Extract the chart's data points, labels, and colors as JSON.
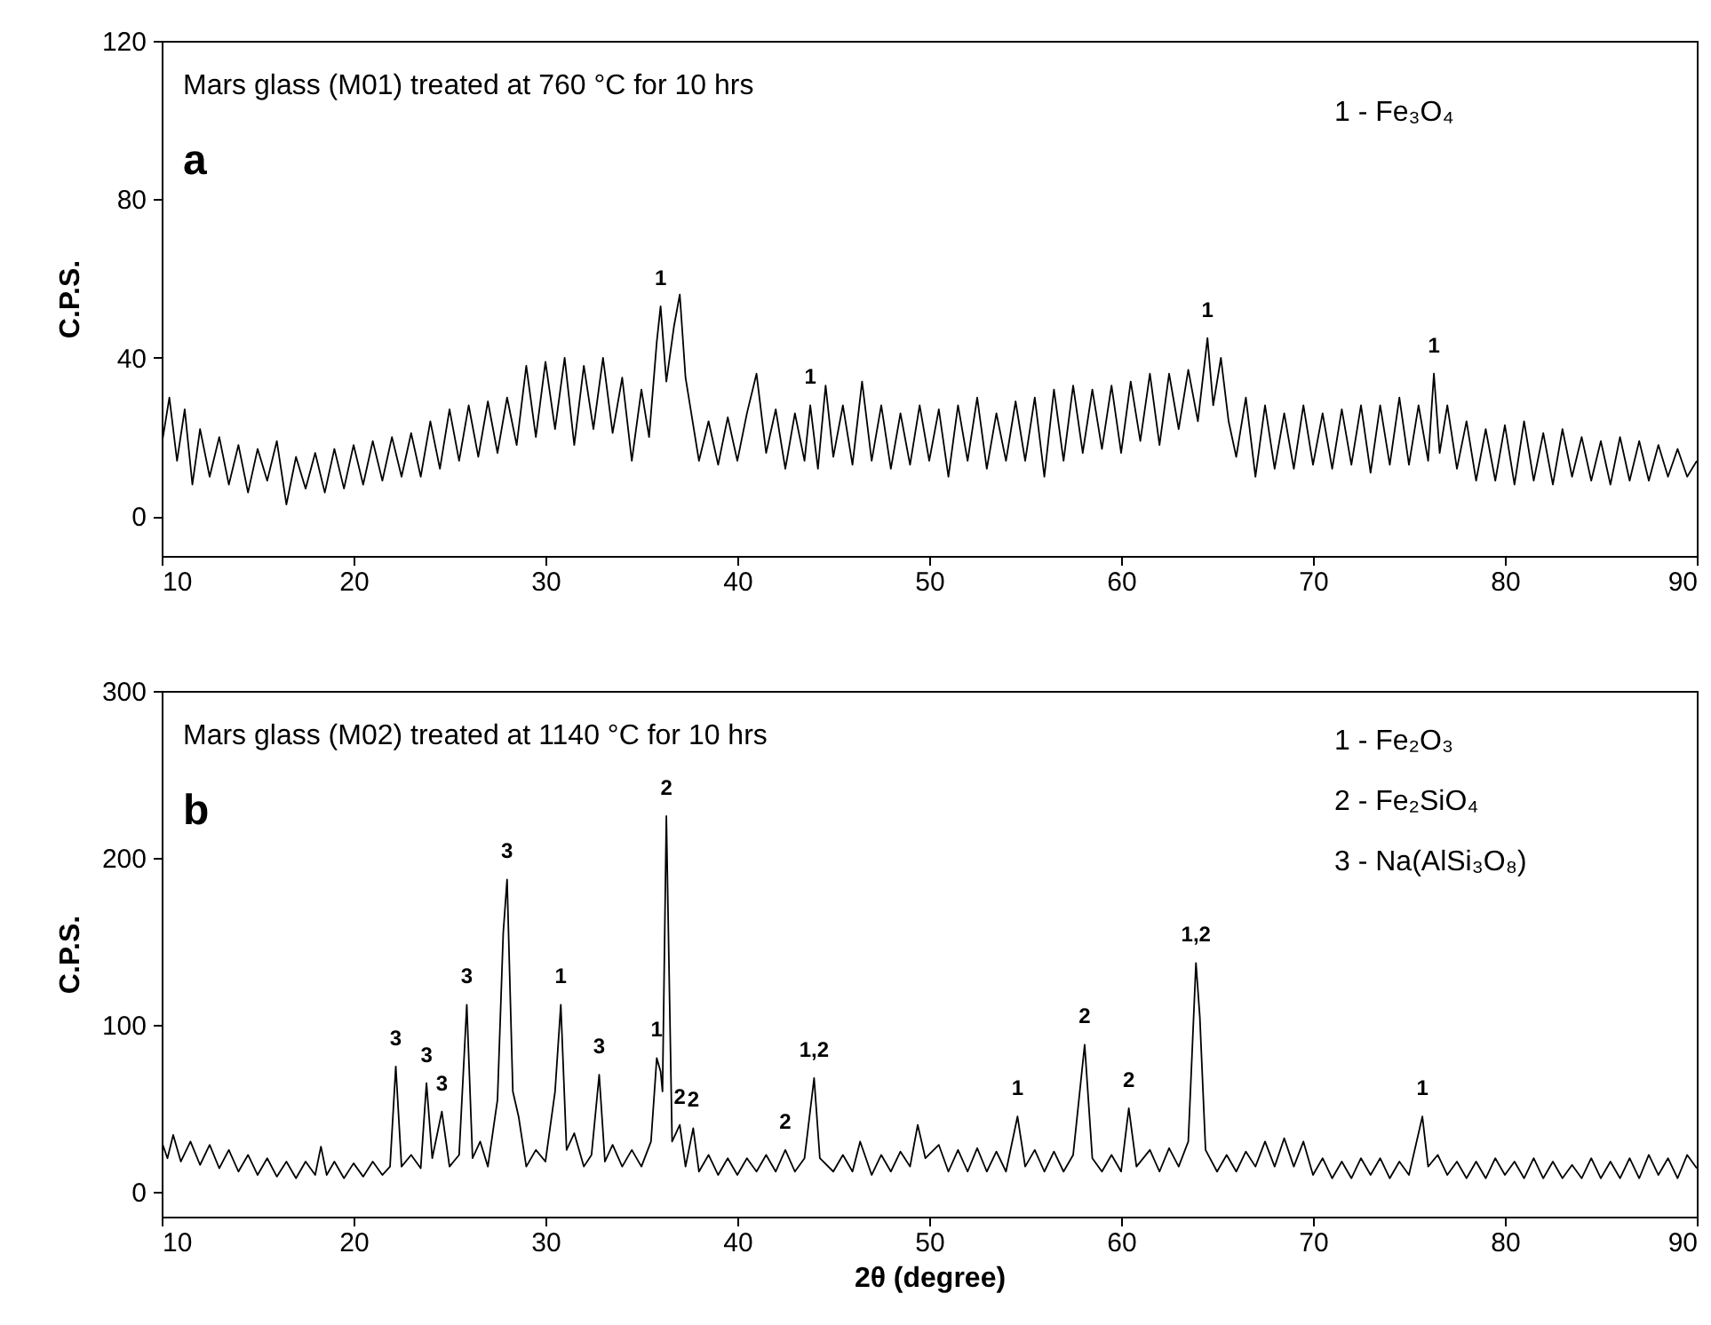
{
  "chart_data": [
    {
      "type": "line",
      "ylabel": "C.P.S.",
      "xlim": [
        10,
        90
      ],
      "xticks": [
        10,
        20,
        30,
        40,
        50,
        60,
        70,
        80,
        90
      ],
      "ylim": [
        -10,
        120
      ],
      "yticks": [
        0,
        40,
        80,
        120
      ],
      "x": [
        10,
        10.4,
        10.8,
        11.2,
        11.6,
        12,
        12.5,
        13,
        13.5,
        14,
        14.5,
        15,
        15.5,
        16,
        16.5,
        17,
        17.5,
        18,
        18.5,
        19,
        19.5,
        20,
        20.5,
        21,
        21.5,
        22,
        22.5,
        23,
        23.5,
        24,
        24.5,
        25,
        25.5,
        26,
        26.5,
        27,
        27.5,
        28,
        28.5,
        29,
        29.5,
        30,
        30.5,
        31,
        31.5,
        32,
        32.5,
        33,
        33.5,
        34,
        34.5,
        35,
        35.4,
        35.8,
        36.0,
        36.3,
        36.7,
        37.0,
        37.3,
        37.6,
        38,
        38.5,
        39,
        39.5,
        40,
        40.5,
        41,
        41.5,
        42,
        42.5,
        43,
        43.5,
        43.8,
        44.2,
        44.6,
        45,
        45.5,
        46,
        46.5,
        47,
        47.5,
        48,
        48.5,
        49,
        49.5,
        50,
        50.5,
        51,
        51.5,
        52,
        52.5,
        53,
        53.5,
        54,
        54.5,
        55,
        55.5,
        56,
        56.5,
        57,
        57.5,
        58,
        58.5,
        59,
        59.5,
        60,
        60.5,
        61,
        61.5,
        62,
        62.5,
        63,
        63.5,
        64,
        64.5,
        64.8,
        65.2,
        65.6,
        66,
        66.5,
        67,
        67.5,
        68,
        68.5,
        69,
        69.5,
        70,
        70.5,
        71,
        71.5,
        72,
        72.5,
        73,
        73.5,
        74,
        74.5,
        75,
        75.5,
        76.0,
        76.3,
        76.6,
        77,
        77.5,
        78,
        78.5,
        79,
        79.5,
        80,
        80.5,
        81,
        81.5,
        82,
        82.5,
        83,
        83.5,
        84,
        84.5,
        85,
        85.5,
        86,
        86.5,
        87,
        87.5,
        88,
        88.5,
        89,
        89.5,
        90
      ],
      "series": [
        {
          "color": "#000000",
          "values": [
            18,
            30,
            14,
            27,
            8,
            22,
            10,
            20,
            8,
            18,
            6,
            17,
            9,
            19,
            3,
            15,
            7,
            16,
            6,
            17,
            7,
            18,
            8,
            19,
            9,
            20,
            10,
            21,
            10,
            24,
            12,
            27,
            14,
            28,
            15,
            29,
            16,
            30,
            18,
            38,
            20,
            39,
            22,
            40,
            18,
            38,
            22,
            40,
            21,
            35,
            14,
            32,
            20,
            44,
            53,
            34,
            48,
            56,
            35,
            26,
            14,
            24,
            13,
            25,
            14,
            26,
            36,
            16,
            27,
            12,
            26,
            14,
            28,
            12,
            33,
            15,
            28,
            13,
            34,
            14,
            28,
            12,
            26,
            13,
            28,
            14,
            27,
            10,
            28,
            14,
            30,
            12,
            26,
            14,
            29,
            14,
            30,
            10,
            32,
            14,
            33,
            16,
            32,
            17,
            33,
            16,
            34,
            19,
            36,
            18,
            36,
            22,
            37,
            24,
            45,
            28,
            40,
            24,
            15,
            30,
            10,
            28,
            12,
            26,
            12,
            28,
            13,
            26,
            12,
            27,
            13,
            28,
            11,
            28,
            13,
            30,
            13,
            28,
            14,
            36,
            16,
            28,
            12,
            24,
            9,
            22,
            9,
            23,
            8,
            24,
            9,
            21,
            8,
            22,
            10,
            20,
            9,
            19,
            8,
            20,
            9,
            19,
            9,
            18,
            10,
            17,
            10,
            14
          ]
        }
      ],
      "annotations": [
        "Mars glass (M01) treated at 760 °C for 10 hrs",
        "a",
        "1 - Fe₃O₄",
        {
          "text": "1",
          "x": 36.0,
          "y": 53
        },
        {
          "text": "1",
          "x": 43.8,
          "y": 28
        },
        {
          "text": "1",
          "x": 64.5,
          "y": 45
        },
        {
          "text": "1",
          "x": 76.3,
          "y": 36
        }
      ]
    },
    {
      "type": "line",
      "xlabel": "2θ (degree)",
      "ylabel": "C.P.S.",
      "xlim": [
        10,
        90
      ],
      "xticks": [
        10,
        20,
        30,
        40,
        50,
        60,
        70,
        80,
        90
      ],
      "ylim": [
        -15,
        300
      ],
      "yticks": [
        0,
        100,
        200,
        300
      ],
      "x": [
        10,
        10.3,
        10.6,
        11,
        11.5,
        12,
        12.5,
        13,
        13.5,
        14,
        14.5,
        15,
        15.5,
        16,
        16.5,
        17,
        17.5,
        18,
        18.3,
        18.6,
        19,
        19.5,
        20,
        20.5,
        21,
        21.5,
        21.9,
        22.2,
        22.5,
        23,
        23.5,
        23.8,
        24.1,
        24.6,
        25,
        25.5,
        25.9,
        26.2,
        26.6,
        27,
        27.5,
        27.8,
        28.0,
        28.3,
        28.6,
        29,
        29.5,
        30,
        30.5,
        30.8,
        31.1,
        31.5,
        32,
        32.4,
        32.8,
        33.1,
        33.5,
        34,
        34.5,
        35,
        35.5,
        35.8,
        36.0,
        36.1,
        36.3,
        36.6,
        37.0,
        37.3,
        37.7,
        38,
        38.5,
        39,
        39.5,
        40,
        40.5,
        41,
        41.5,
        42,
        42.5,
        43,
        43.5,
        44.0,
        44.3,
        45,
        45.5,
        46,
        46.4,
        47,
        47.5,
        48,
        48.5,
        49,
        49.4,
        49.8,
        50.5,
        51,
        51.5,
        52,
        52.5,
        53,
        53.5,
        54,
        54.6,
        55,
        55.5,
        56,
        56.5,
        57,
        57.5,
        58.1,
        58.5,
        59,
        59.5,
        60,
        60.4,
        60.8,
        61.5,
        62,
        62.5,
        63,
        63.5,
        63.9,
        64.1,
        64.4,
        65,
        65.5,
        66,
        66.5,
        67,
        67.5,
        68,
        68.5,
        69,
        69.5,
        70,
        70.5,
        71,
        71.5,
        72,
        72.5,
        73,
        73.5,
        74,
        74.5,
        75,
        75.7,
        76,
        76.5,
        77,
        77.5,
        78,
        78.5,
        79,
        79.5,
        80,
        80.5,
        81,
        81.5,
        82,
        82.5,
        83,
        83.5,
        84,
        84.5,
        85,
        85.5,
        86,
        86.5,
        87,
        87.5,
        88,
        88.5,
        89,
        89.5,
        90
      ],
      "series": [
        {
          "color": "#000000",
          "values": [
            30,
            20,
            34,
            18,
            30,
            16,
            28,
            14,
            25,
            12,
            22,
            10,
            20,
            9,
            18,
            8,
            18,
            10,
            27,
            10,
            18,
            8,
            17,
            9,
            18,
            10,
            15,
            75,
            15,
            22,
            14,
            65,
            20,
            48,
            15,
            22,
            112,
            20,
            30,
            15,
            55,
            155,
            187,
            60,
            45,
            15,
            25,
            18,
            60,
            112,
            25,
            35,
            15,
            22,
            70,
            18,
            28,
            15,
            25,
            15,
            30,
            80,
            72,
            60,
            225,
            30,
            40,
            15,
            38,
            12,
            22,
            10,
            20,
            10,
            20,
            12,
            22,
            12,
            25,
            12,
            20,
            68,
            20,
            12,
            22,
            12,
            30,
            10,
            22,
            12,
            24,
            15,
            40,
            20,
            28,
            12,
            25,
            12,
            26,
            12,
            24,
            12,
            45,
            15,
            25,
            12,
            24,
            12,
            22,
            88,
            20,
            12,
            22,
            12,
            50,
            15,
            25,
            12,
            26,
            15,
            30,
            137,
            105,
            25,
            12,
            22,
            12,
            24,
            15,
            30,
            15,
            32,
            15,
            30,
            10,
            20,
            8,
            18,
            8,
            20,
            10,
            20,
            8,
            18,
            10,
            45,
            15,
            22,
            10,
            18,
            8,
            18,
            8,
            20,
            10,
            18,
            8,
            20,
            8,
            18,
            8,
            16,
            8,
            20,
            8,
            18,
            8,
            20,
            8,
            22,
            10,
            20,
            8,
            22,
            14
          ]
        }
      ],
      "annotations": [
        "Mars glass (M02) treated at 1140 °C for 10 hrs",
        "b",
        "1 - Fe₂O₃",
        "2 - Fe₂SiO₄",
        "3 - Na(AlSi₃O₈)",
        {
          "text": "3",
          "x": 22.2,
          "y": 75
        },
        {
          "text": "3",
          "x": 23.8,
          "y": 65
        },
        {
          "text": "3",
          "x": 24.6,
          "y": 48
        },
        {
          "text": "3",
          "x": 25.9,
          "y": 112
        },
        {
          "text": "3",
          "x": 28.0,
          "y": 187
        },
        {
          "text": "1",
          "x": 30.8,
          "y": 112
        },
        {
          "text": "3",
          "x": 32.8,
          "y": 70
        },
        {
          "text": "1",
          "x": 35.8,
          "y": 80
        },
        {
          "text": "2",
          "x": 36.3,
          "y": 225
        },
        {
          "text": "2",
          "x": 37.0,
          "y": 40
        },
        {
          "text": "2",
          "x": 37.7,
          "y": 38
        },
        {
          "text": "2",
          "x": 42.5,
          "y": 25
        },
        {
          "text": "1,2",
          "x": 44.0,
          "y": 68
        },
        {
          "text": "1",
          "x": 54.6,
          "y": 45
        },
        {
          "text": "2",
          "x": 58.1,
          "y": 88
        },
        {
          "text": "2",
          "x": 60.4,
          "y": 50
        },
        {
          "text": "1,2",
          "x": 63.9,
          "y": 137
        },
        {
          "text": "1",
          "x": 75.7,
          "y": 45
        }
      ]
    }
  ]
}
